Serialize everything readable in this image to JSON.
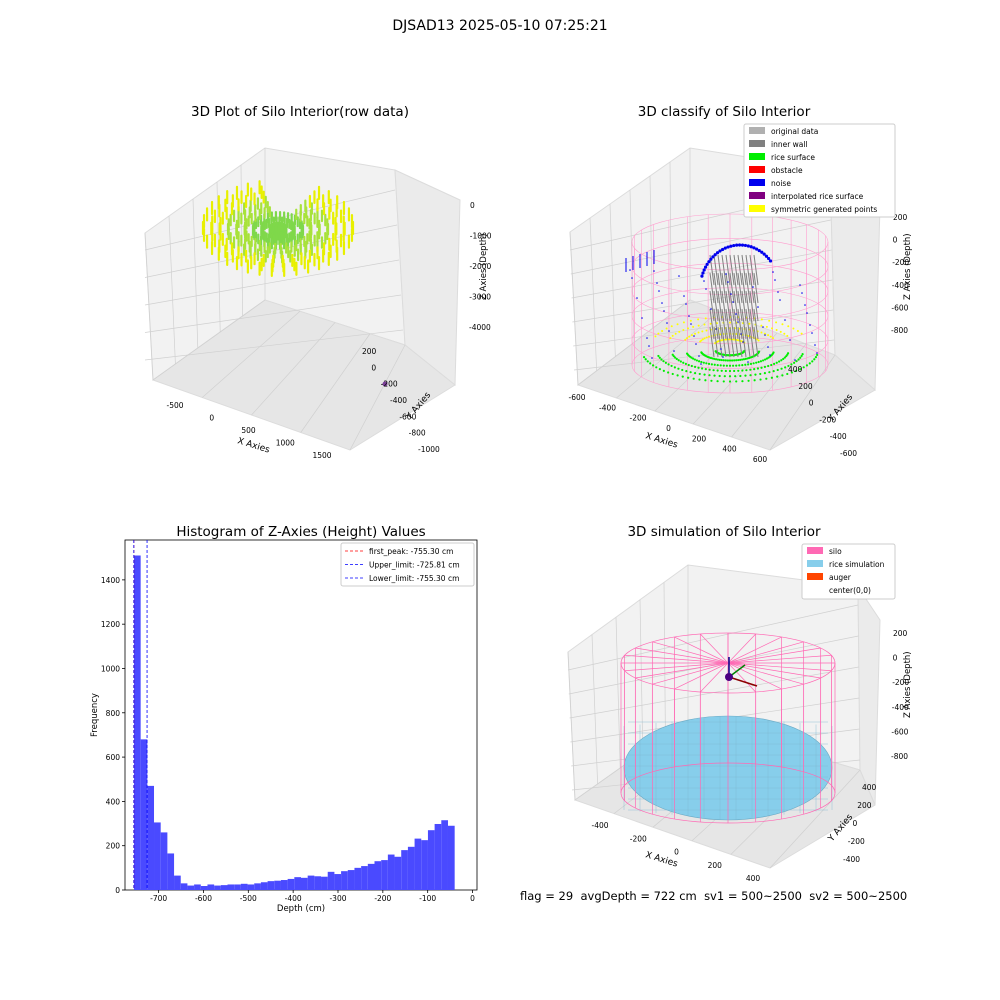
{
  "suptitle": "DJSAD13 2025-05-10 07:25:21",
  "footer": {
    "flag": "flag = 29",
    "avg_depth": "avgDepth = 722 cm",
    "sv1": "sv1 = 500~2500",
    "sv2": "sv2 = 500~2500"
  },
  "chart_data": [
    {
      "type": "scatter",
      "title": "3D Plot of Silo Interior(row data)",
      "xlabel": "X Axies",
      "ylabel": "Y Axies",
      "zlabel": "Z Axies (Depth)",
      "x_ticks": [
        "-500",
        "0",
        "500",
        "1000",
        "1500"
      ],
      "y_ticks": [
        "200",
        "0",
        "-200",
        "-400",
        "-600",
        "-800",
        "-1000"
      ],
      "z_ticks": [
        "0",
        "-1000",
        "-2000",
        "-3000",
        "-4000"
      ],
      "colors": {
        "low": "#e8f000",
        "high": "#7fd84a",
        "outlier": "#7b3f98"
      }
    },
    {
      "type": "scatter",
      "title": "3D classify of Silo Interior",
      "xlabel": "X Axies",
      "ylabel": "Y Axies",
      "zlabel": "Z Axies (Depth)",
      "x_ticks": [
        "-600",
        "-400",
        "-200",
        "0",
        "200",
        "400",
        "600"
      ],
      "y_ticks": [
        "400",
        "200",
        "0",
        "-200",
        "-400",
        "-600"
      ],
      "z_ticks": [
        "200",
        "0",
        "-200",
        "-400",
        "-600",
        "-800"
      ],
      "legend": [
        {
          "label": "original data",
          "color": "#b0b0b0"
        },
        {
          "label": "inner wall",
          "color": "#808080"
        },
        {
          "label": "rice surface",
          "color": "#00ee00"
        },
        {
          "label": "obstacle",
          "color": "#ff0000"
        },
        {
          "label": "noise",
          "color": "#0000ee"
        },
        {
          "label": "interpolated rice surface",
          "color": "#800080"
        },
        {
          "label": "symmetric generated points",
          "color": "#ffff00"
        }
      ]
    },
    {
      "type": "bar",
      "title": "Histogram of Z-Axies (Height) Values",
      "xlabel": "Depth (cm)",
      "ylabel": "Frequency",
      "xlim": [
        -775,
        10
      ],
      "ylim": [
        0,
        1580
      ],
      "x_ticks": [
        -700,
        -600,
        -500,
        -400,
        -300,
        -200,
        -100,
        0
      ],
      "y_ticks": [
        0,
        200,
        400,
        600,
        800,
        1000,
        1200,
        1400
      ],
      "bin_start": -755,
      "bin_width": 14.9,
      "values": [
        1510,
        680,
        470,
        305,
        260,
        165,
        65,
        30,
        20,
        25,
        18,
        25,
        20,
        22,
        25,
        25,
        28,
        25,
        30,
        35,
        40,
        42,
        45,
        50,
        58,
        55,
        65,
        62,
        60,
        82,
        72,
        85,
        90,
        100,
        108,
        118,
        130,
        135,
        160,
        150,
        180,
        195,
        232,
        225,
        270,
        298,
        315,
        290
      ],
      "bar_color": "#4a4aff",
      "lines": [
        {
          "label": "first_peak: -755.30 cm",
          "x": -755.3,
          "color": "#ff0000"
        },
        {
          "label": "Upper_limit: -725.81 cm",
          "x": -725.81,
          "color": "#0000ff"
        },
        {
          "label": "Lower_limit: -755.30 cm",
          "x": -755.3,
          "color": "#0000ff"
        }
      ]
    },
    {
      "type": "scatter",
      "title": "3D simulation of Silo Interior",
      "xlabel": "X Axies",
      "ylabel": "Y Axies",
      "zlabel": "Z Axies (Depth)",
      "x_ticks": [
        "-400",
        "-200",
        "0",
        "200",
        "400"
      ],
      "y_ticks": [
        "400",
        "200",
        "0",
        "-200",
        "-400"
      ],
      "z_ticks": [
        "200",
        "0",
        "-200",
        "-400",
        "-600",
        "-800"
      ],
      "legend": [
        {
          "label": "silo",
          "color": "#ff69b4"
        },
        {
          "label": "rice simulation",
          "color": "#87ceeb"
        },
        {
          "label": "auger",
          "color": "#ff4500"
        },
        {
          "label": "center(0,0)",
          "color": ""
        }
      ]
    }
  ]
}
